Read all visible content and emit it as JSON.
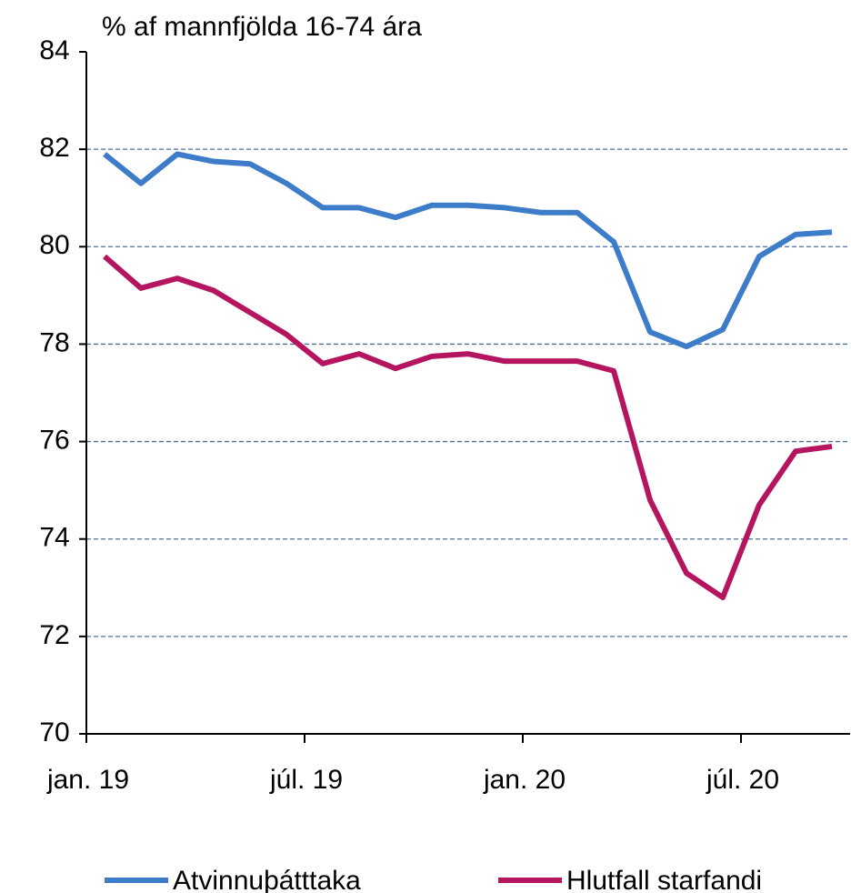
{
  "chart_data": {
    "type": "line",
    "title": "% af mannfjölda 16-74 ára",
    "categories": [
      "jan. 19",
      null,
      null,
      null,
      null,
      null,
      "júl. 19",
      null,
      null,
      null,
      null,
      null,
      "jan. 20",
      null,
      null,
      null,
      null,
      null,
      "júl. 20",
      null,
      null
    ],
    "series": [
      {
        "name": "Atvinnuþátttaka",
        "color": "#3d7cc9",
        "values": [
          81.9,
          81.3,
          81.9,
          81.75,
          81.7,
          81.3,
          80.8,
          80.8,
          80.6,
          80.85,
          80.85,
          80.8,
          80.7,
          80.7,
          80.1,
          78.25,
          77.95,
          78.3,
          79.8,
          80.25,
          80.3
        ]
      },
      {
        "name": "Hlutfall starfandi",
        "color": "#b5155f",
        "values": [
          79.8,
          79.15,
          79.35,
          79.1,
          78.65,
          78.2,
          77.6,
          77.8,
          77.5,
          77.75,
          77.8,
          77.65,
          77.65,
          77.65,
          77.45,
          74.8,
          73.3,
          72.8,
          74.7,
          75.8,
          75.9
        ]
      }
    ],
    "ylim": [
      70,
      84
    ],
    "yticks": [
      70,
      72,
      74,
      76,
      78,
      80,
      82,
      84
    ],
    "grid": true,
    "legend": "bottom"
  }
}
